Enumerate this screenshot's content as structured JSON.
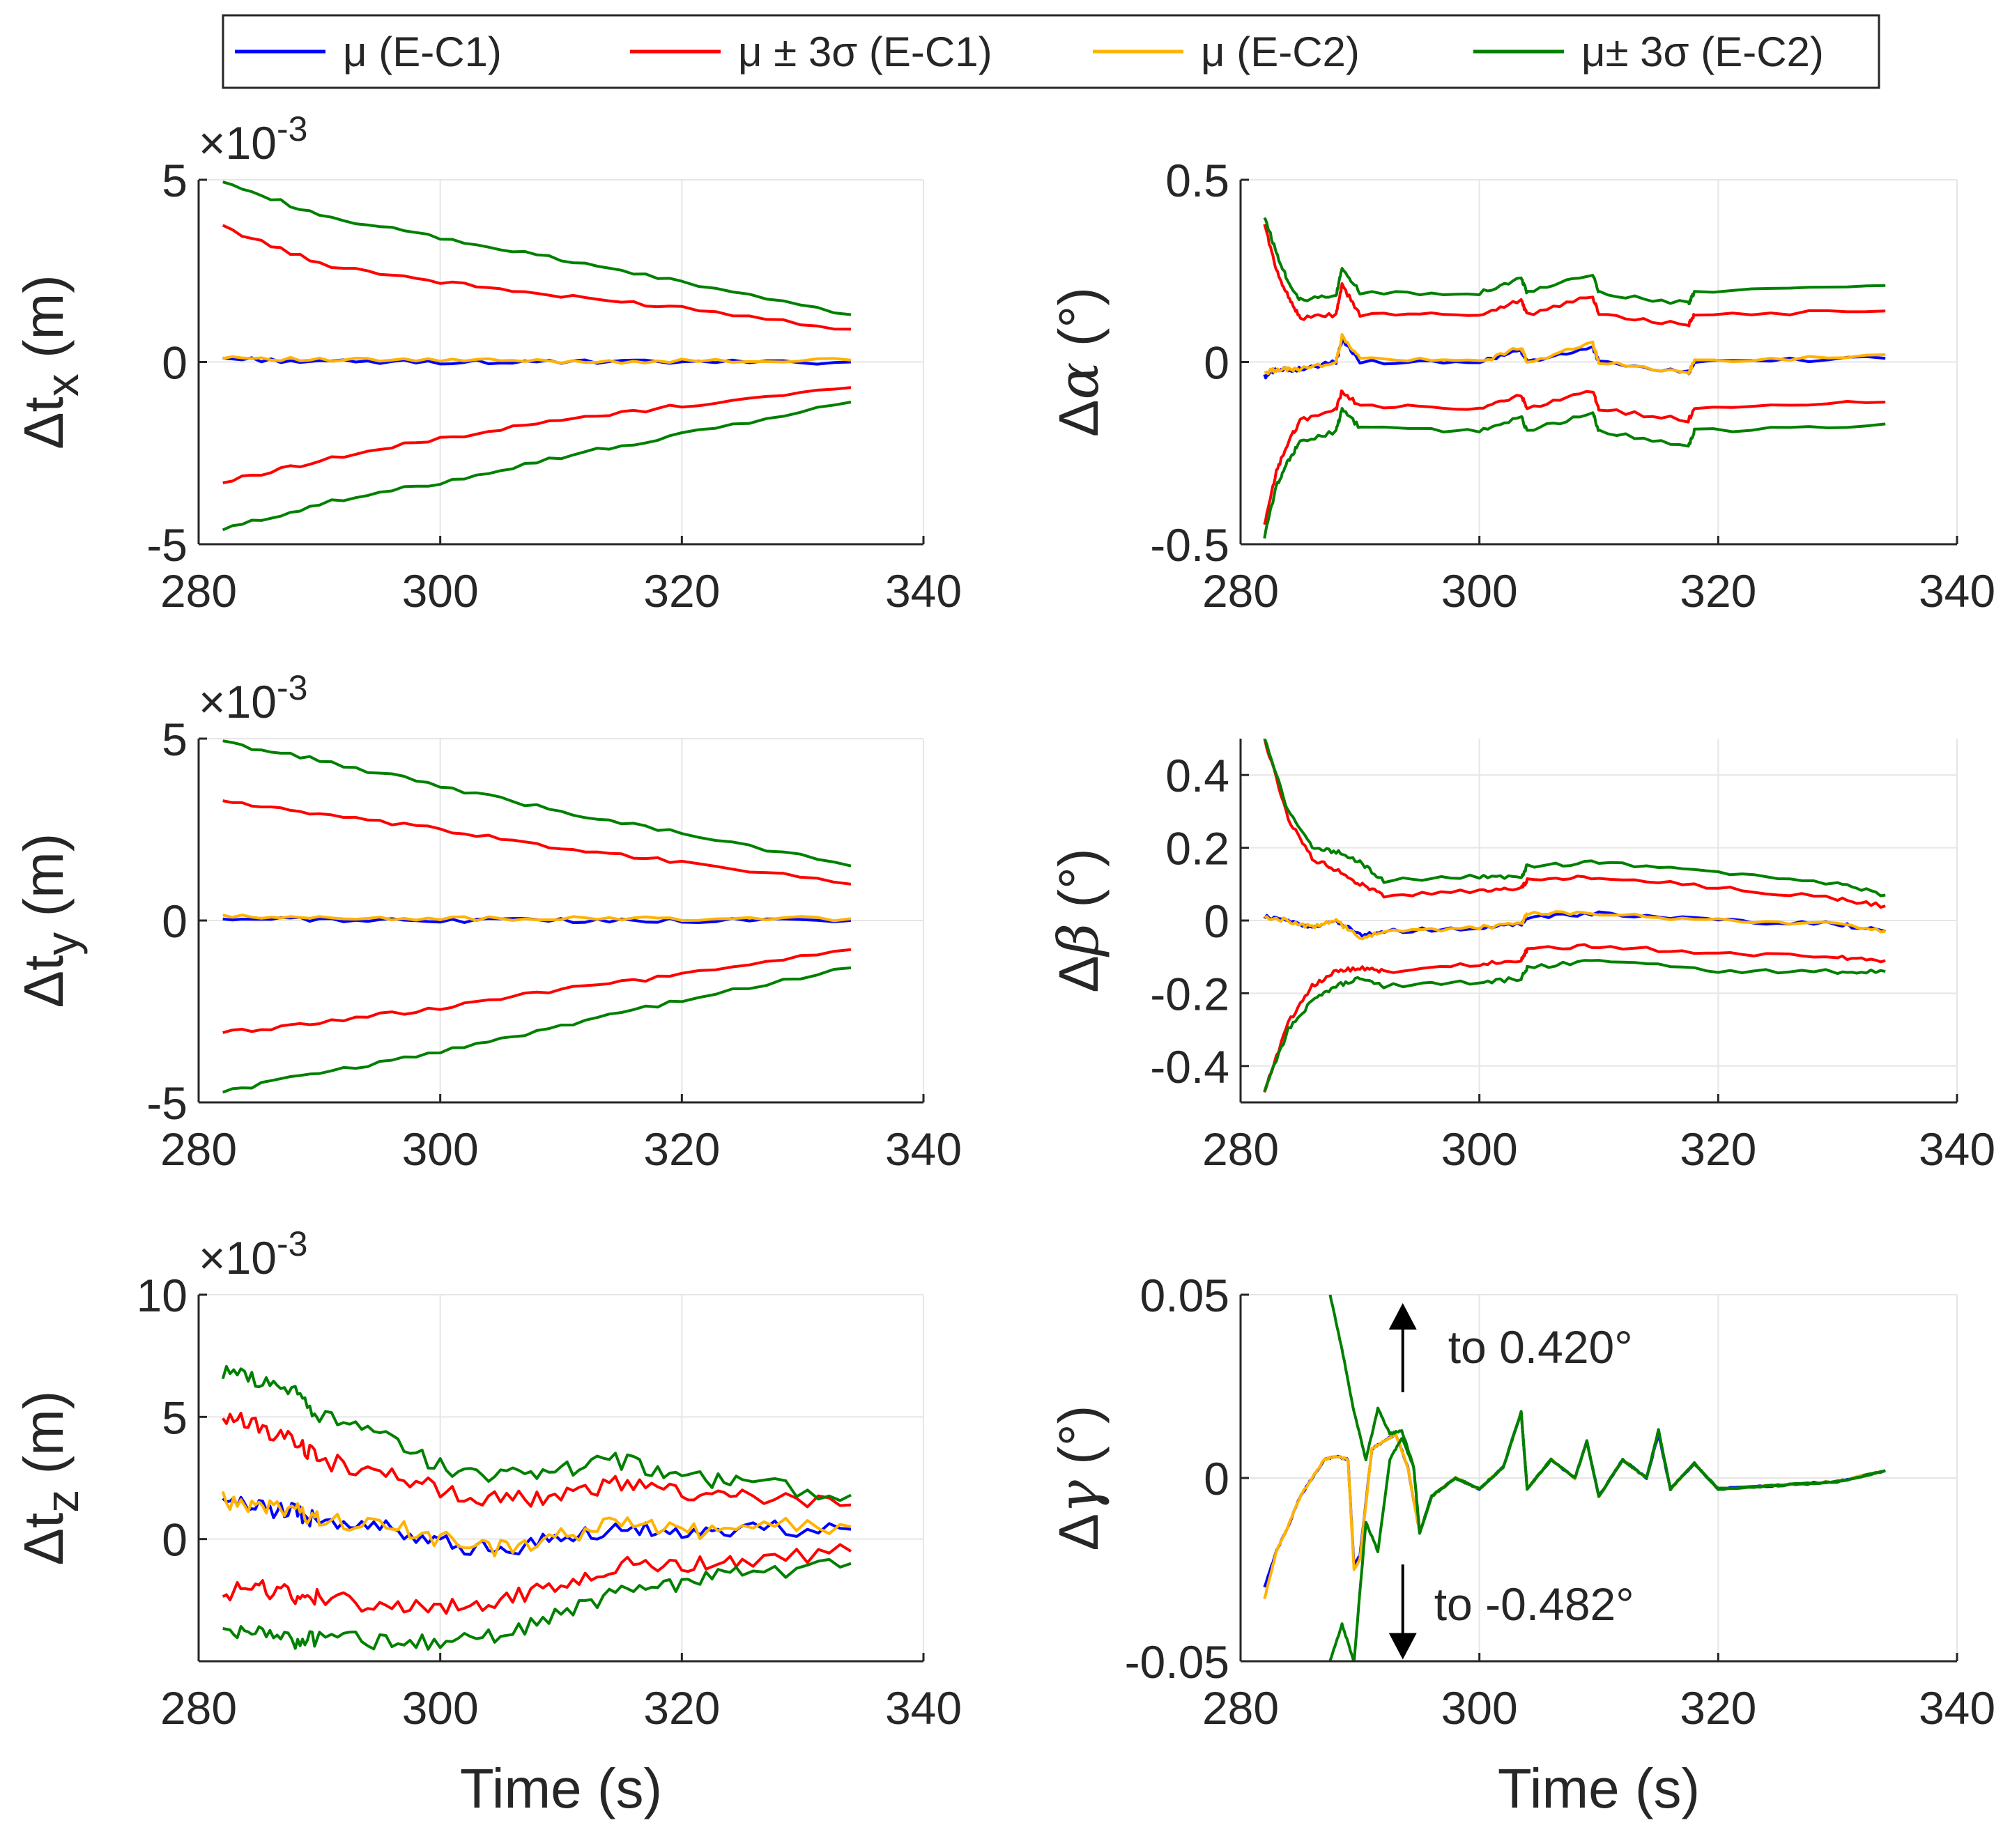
{
  "legend": [
    {
      "label": "μ (E-C1)",
      "color": "#0000ff"
    },
    {
      "label": "μ ± 3σ (E-C1)",
      "color": "#ff0000"
    },
    {
      "label": "μ (E-C2)",
      "color": "#ffb300"
    },
    {
      "label": "μ± 3σ (E-C2)",
      "color": "#008000"
    }
  ],
  "colors": {
    "mu_c1": "#0000ff",
    "pm_c1": "#ff0000",
    "mu_c2": "#ffb300",
    "pm_c2": "#008000",
    "axis": "#262626",
    "grid": "#e6e6e6"
  },
  "chart_data": [
    {
      "type": "line",
      "id": "tx",
      "ylabel": "Δt_x (m)",
      "ylabel_main": "Δt",
      "ylabel_sub": "x",
      "ylabel_unit": " (m)",
      "exponent": "×10",
      "exponent_power": "-3",
      "xlim": [
        280,
        340
      ],
      "ylim": [
        -5,
        5
      ],
      "xticks": [
        "280",
        "300",
        "320",
        "340"
      ],
      "yticks": [
        "-5",
        "0",
        "5"
      ],
      "xlabel": "",
      "x": [
        282,
        290,
        300,
        310,
        320,
        334
      ],
      "series": [
        {
          "name": "μ+3σ (E-C2)",
          "values": [
            5.0,
            4.0,
            3.4,
            2.8,
            2.2,
            1.3
          ]
        },
        {
          "name": "μ+3σ (E-C1)",
          "values": [
            3.7,
            2.7,
            2.2,
            1.8,
            1.5,
            0.9
          ]
        },
        {
          "name": "μ (E-C2)",
          "values": [
            0.15,
            0.05,
            0.05,
            0.02,
            0.02,
            0.05
          ]
        },
        {
          "name": "μ (E-C1)",
          "values": [
            0.1,
            0.0,
            0.0,
            0.0,
            0.0,
            0.0
          ]
        },
        {
          "name": "μ-3σ (E-C1)",
          "values": [
            -3.3,
            -2.7,
            -2.1,
            -1.6,
            -1.2,
            -0.7
          ]
        },
        {
          "name": "μ-3σ (E-C2)",
          "values": [
            -4.6,
            -3.9,
            -3.3,
            -2.6,
            -2.0,
            -1.1
          ]
        }
      ]
    },
    {
      "type": "line",
      "id": "alpha",
      "ylabel": "Δα (°)",
      "ylabel_main": "Δ",
      "ylabel_sym": "α",
      "ylabel_unit": " (°)",
      "xlim": [
        280,
        340
      ],
      "ylim": [
        -0.5,
        0.5
      ],
      "xticks": [
        "280",
        "300",
        "320",
        "340"
      ],
      "yticks": [
        "-0.5",
        "0",
        "0.5"
      ],
      "xlabel": "",
      "x": [
        282,
        283,
        284,
        285,
        288,
        288.5,
        290,
        300,
        303.5,
        304,
        309.5,
        310,
        317.5,
        318,
        334
      ],
      "series": [
        {
          "name": "μ+3σ (E-C2)",
          "values": [
            0.4,
            0.3,
            0.22,
            0.17,
            0.18,
            0.26,
            0.19,
            0.19,
            0.23,
            0.19,
            0.24,
            0.19,
            0.16,
            0.19,
            0.21
          ]
        },
        {
          "name": "μ+3σ (E-C1)",
          "values": [
            0.38,
            0.25,
            0.18,
            0.12,
            0.13,
            0.21,
            0.13,
            0.13,
            0.17,
            0.13,
            0.18,
            0.13,
            0.1,
            0.13,
            0.14
          ]
        },
        {
          "name": "μ (E-C2)",
          "values": [
            -0.03,
            -0.02,
            -0.02,
            -0.02,
            0.0,
            0.07,
            0.01,
            0.0,
            0.04,
            0.0,
            0.05,
            0.0,
            -0.03,
            0.0,
            0.02
          ]
        },
        {
          "name": "μ (E-C1)",
          "values": [
            -0.04,
            -0.02,
            -0.02,
            -0.02,
            0.0,
            0.06,
            0.0,
            0.0,
            0.03,
            0.0,
            0.04,
            0.0,
            -0.03,
            0.0,
            0.01
          ]
        },
        {
          "name": "μ-3σ (E-C1)",
          "values": [
            -0.45,
            -0.3,
            -0.22,
            -0.16,
            -0.13,
            -0.08,
            -0.12,
            -0.13,
            -0.09,
            -0.13,
            -0.08,
            -0.13,
            -0.16,
            -0.13,
            -0.11
          ]
        },
        {
          "name": "μ-3σ (E-C2)",
          "values": [
            -0.48,
            -0.34,
            -0.27,
            -0.22,
            -0.19,
            -0.13,
            -0.18,
            -0.19,
            -0.15,
            -0.19,
            -0.14,
            -0.19,
            -0.23,
            -0.19,
            -0.17
          ]
        }
      ]
    },
    {
      "type": "line",
      "id": "ty",
      "ylabel": "Δt_y (m)",
      "ylabel_main": "Δt",
      "ylabel_sub": "y",
      "ylabel_unit": " (m)",
      "exponent": "×10",
      "exponent_power": "-3",
      "xlim": [
        280,
        340
      ],
      "ylim": [
        -5,
        5
      ],
      "xticks": [
        "280",
        "300",
        "320",
        "340"
      ],
      "yticks": [
        "-5",
        "0",
        "5"
      ],
      "xlabel": "",
      "x": [
        282,
        290,
        300,
        310,
        320,
        334
      ],
      "series": [
        {
          "name": "μ+3σ (E-C2)",
          "values": [
            4.9,
            4.4,
            3.7,
            3.0,
            2.4,
            1.5
          ]
        },
        {
          "name": "μ+3σ (E-C1)",
          "values": [
            3.3,
            2.9,
            2.5,
            2.0,
            1.6,
            1.0
          ]
        },
        {
          "name": "μ (E-C2)",
          "values": [
            0.1,
            0.08,
            0.05,
            0.05,
            0.05,
            0.05
          ]
        },
        {
          "name": "μ (E-C1)",
          "values": [
            0.05,
            0.02,
            0.0,
            0.0,
            0.0,
            0.0
          ]
        },
        {
          "name": "μ-3σ (E-C1)",
          "values": [
            -3.1,
            -2.8,
            -2.4,
            -1.9,
            -1.5,
            -0.8
          ]
        },
        {
          "name": "μ-3σ (E-C2)",
          "values": [
            -4.7,
            -4.2,
            -3.6,
            -2.9,
            -2.2,
            -1.3
          ]
        }
      ]
    },
    {
      "type": "line",
      "id": "beta",
      "ylabel": "Δβ (°)",
      "ylabel_main": "Δ",
      "ylabel_sym": "β",
      "ylabel_unit": " (°)",
      "xlim": [
        280,
        340
      ],
      "ylim": [
        -0.5,
        0.5
      ],
      "xticks": [
        "280",
        "300",
        "320",
        "340"
      ],
      "yticks": [
        "-0.4",
        "-0.2",
        "0",
        "0.2",
        "0.4"
      ],
      "xlabel": "",
      "x": [
        282,
        284,
        286,
        288,
        290,
        292,
        300,
        303.5,
        304,
        310,
        320,
        330,
        334
      ],
      "series": [
        {
          "name": "μ+3σ (E-C2)",
          "values": [
            0.5,
            0.3,
            0.2,
            0.19,
            0.16,
            0.11,
            0.12,
            0.12,
            0.15,
            0.16,
            0.13,
            0.1,
            0.07
          ]
        },
        {
          "name": "μ+3σ (E-C1)",
          "values": [
            0.5,
            0.28,
            0.17,
            0.14,
            0.1,
            0.07,
            0.08,
            0.09,
            0.11,
            0.12,
            0.09,
            0.06,
            0.04
          ]
        },
        {
          "name": "μ (E-C2)",
          "values": [
            0.01,
            0.0,
            -0.02,
            0.0,
            -0.05,
            -0.03,
            -0.02,
            -0.01,
            0.02,
            0.02,
            0.0,
            -0.01,
            -0.03
          ]
        },
        {
          "name": "μ (E-C1)",
          "values": [
            0.01,
            0.0,
            -0.02,
            0.0,
            -0.04,
            -0.03,
            -0.02,
            -0.01,
            0.01,
            0.02,
            0.0,
            -0.01,
            -0.03
          ]
        },
        {
          "name": "μ-3σ (E-C1)",
          "values": [
            -0.47,
            -0.28,
            -0.18,
            -0.14,
            -0.13,
            -0.14,
            -0.12,
            -0.11,
            -0.08,
            -0.07,
            -0.09,
            -0.1,
            -0.11
          ]
        },
        {
          "name": "μ-3σ (E-C2)",
          "values": [
            -0.47,
            -0.3,
            -0.22,
            -0.18,
            -0.16,
            -0.18,
            -0.17,
            -0.16,
            -0.13,
            -0.11,
            -0.14,
            -0.14,
            -0.14
          ]
        }
      ]
    },
    {
      "type": "line",
      "id": "tz",
      "ylabel": "Δt_z (m)",
      "ylabel_main": "Δt",
      "ylabel_sub": "z",
      "ylabel_unit": " (m)",
      "exponent": "×10",
      "exponent_power": "-3",
      "xlim": [
        280,
        340
      ],
      "ylim": [
        -5,
        10
      ],
      "xticks": [
        "280",
        "300",
        "320",
        "340"
      ],
      "yticks": [
        "0",
        "5",
        "10"
      ],
      "xlabel": "Time (s)",
      "x": [
        282,
        285,
        288,
        290,
        295,
        300,
        305,
        310,
        315,
        320,
        325,
        334
      ],
      "series": [
        {
          "name": "μ+3σ (E-C2)",
          "values": [
            6.8,
            6.5,
            6.0,
            5.0,
            4.2,
            3.0,
            2.6,
            2.9,
            3.2,
            2.6,
            2.3,
            1.8
          ]
        },
        {
          "name": "μ+3σ (E-C1)",
          "values": [
            5.0,
            4.6,
            4.0,
            3.2,
            2.8,
            2.0,
            1.6,
            1.8,
            2.3,
            1.8,
            1.7,
            1.4
          ]
        },
        {
          "name": "μ (E-C2)",
          "values": [
            1.6,
            1.4,
            1.2,
            0.8,
            0.6,
            0.0,
            -0.4,
            0.1,
            0.7,
            0.3,
            0.5,
            0.5
          ]
        },
        {
          "name": "μ (E-C1)",
          "values": [
            1.5,
            1.3,
            1.1,
            0.7,
            0.5,
            -0.1,
            -0.5,
            0.0,
            0.6,
            0.2,
            0.4,
            0.4
          ]
        },
        {
          "name": "μ-3σ (E-C1)",
          "values": [
            -2.2,
            -2.0,
            -2.3,
            -2.4,
            -2.7,
            -2.9,
            -2.5,
            -1.8,
            -1.0,
            -1.2,
            -0.8,
            -0.5
          ]
        },
        {
          "name": "μ-3σ (E-C2)",
          "values": [
            -3.6,
            -3.8,
            -4.2,
            -4.0,
            -4.2,
            -4.3,
            -4.0,
            -3.1,
            -2.2,
            -1.8,
            -1.4,
            -1.0
          ]
        }
      ]
    },
    {
      "type": "line",
      "id": "gamma",
      "ylabel": "Δγ (°)",
      "ylabel_main": "Δ",
      "ylabel_sym": "γ",
      "ylabel_unit": " (°)",
      "xlim": [
        280,
        340
      ],
      "ylim": [
        -0.05,
        0.05
      ],
      "xticks": [
        "280",
        "300",
        "320",
        "340"
      ],
      "yticks": [
        "-0.05",
        "0",
        "0.05"
      ],
      "xlabel": "Time (s)",
      "annotations": [
        {
          "text": "to 0.420°",
          "arrow": "up",
          "x": 293,
          "y": 0.03
        },
        {
          "text": "to -0.482°",
          "arrow": "down",
          "x": 293,
          "y": -0.035
        }
      ],
      "x_mu": [
        282,
        283,
        284,
        285,
        286,
        287,
        288,
        289,
        289.5,
        290,
        291,
        292,
        293,
        294,
        295,
        296,
        298,
        300,
        302,
        303.5,
        304,
        306,
        308,
        309,
        310,
        312,
        314,
        315,
        316,
        318,
        320,
        325,
        330,
        334
      ],
      "series_mu": [
        {
          "name": "μ (E-C2)",
          "values": [
            -0.033,
            -0.02,
            -0.013,
            -0.005,
            0.0,
            0.005,
            0.006,
            0.005,
            -0.025,
            -0.022,
            0.008,
            0.01,
            0.012,
            0.003,
            -0.015,
            -0.005,
            0.0,
            -0.003,
            0.003,
            0.018,
            -0.003,
            0.005,
            0.0,
            0.01,
            -0.005,
            0.005,
            0.0,
            0.013,
            -0.003,
            0.004,
            -0.003,
            -0.002,
            -0.001,
            0.002
          ]
        },
        {
          "name": "μ (E-C1)",
          "values": [
            -0.03,
            -0.02,
            -0.013,
            -0.005,
            0.0,
            0.005,
            0.006,
            0.005,
            -0.024,
            -0.021,
            0.008,
            0.01,
            0.012,
            0.003,
            -0.015,
            -0.005,
            0.0,
            -0.003,
            0.003,
            0.018,
            -0.003,
            0.005,
            0.0,
            0.01,
            -0.005,
            0.005,
            0.0,
            0.012,
            -0.003,
            0.004,
            -0.003,
            -0.002,
            -0.001,
            0.002
          ]
        }
      ],
      "x_pm": [
        287.5,
        288.5,
        289.5,
        290.5,
        291.5,
        292.5,
        293.5,
        294.5,
        295,
        296,
        298,
        300,
        302,
        303.5,
        304,
        306,
        308,
        309,
        310,
        312,
        314,
        315,
        316,
        318,
        320,
        325,
        330,
        334
      ],
      "series_pm": [
        {
          "name": "μ+3σ (E-C2)",
          "values": [
            0.05,
            0.035,
            0.018,
            0.005,
            0.019,
            0.012,
            0.013,
            0.003,
            -0.015,
            -0.005,
            0.0,
            -0.003,
            0.003,
            0.018,
            -0.003,
            0.005,
            0.0,
            0.01,
            -0.005,
            0.005,
            0.0,
            0.013,
            -0.003,
            0.004,
            -0.003,
            -0.002,
            -0.001,
            0.002
          ]
        },
        {
          "name": "μ-3σ (E-C2)",
          "values": [
            -0.05,
            -0.04,
            -0.05,
            -0.012,
            -0.02,
            0.005,
            0.011,
            0.003,
            -0.015,
            -0.005,
            0.0,
            -0.003,
            0.003,
            0.018,
            -0.003,
            0.005,
            0.0,
            0.01,
            -0.005,
            0.005,
            0.0,
            0.013,
            -0.003,
            0.004,
            -0.003,
            -0.002,
            -0.001,
            0.002
          ]
        }
      ]
    }
  ]
}
